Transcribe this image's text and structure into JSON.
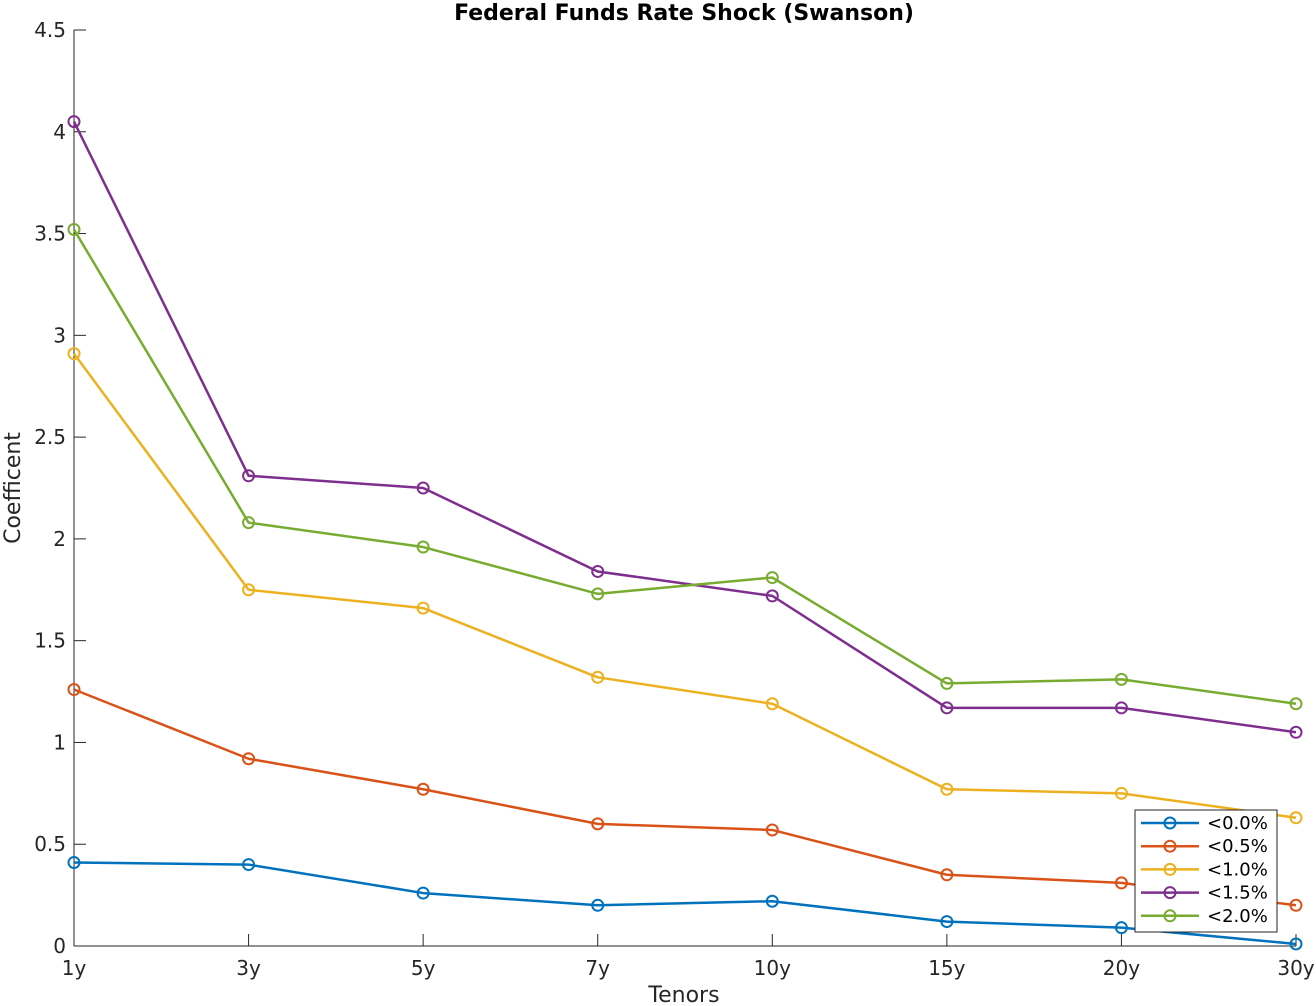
{
  "chart_data": {
    "type": "line",
    "title": "Federal Funds Rate Shock (Swanson)",
    "xlabel": "Tenors",
    "ylabel": "Coefficent",
    "categories": [
      "1y",
      "3y",
      "5y",
      "7y",
      "10y",
      "15y",
      "20y",
      "30y"
    ],
    "ylim": [
      0,
      4.5
    ],
    "yticks": [
      "0",
      "0.5",
      "1",
      "1.5",
      "2",
      "2.5",
      "3",
      "3.5",
      "4",
      "4.5"
    ],
    "grid": false,
    "legend_position": "bottom-right",
    "marker": "circle",
    "series": [
      {
        "name": "<0.0%",
        "color": "#0072BD",
        "values": [
          0.41,
          0.4,
          0.26,
          0.2,
          0.22,
          0.12,
          0.09,
          0.01
        ]
      },
      {
        "name": "<0.5%",
        "color": "#D95319",
        "values": [
          1.26,
          0.92,
          0.77,
          0.6,
          0.57,
          0.35,
          0.31,
          0.2
        ]
      },
      {
        "name": "<1.0%",
        "color": "#EDB120",
        "values": [
          2.91,
          1.75,
          1.66,
          1.32,
          1.19,
          0.77,
          0.75,
          0.63
        ]
      },
      {
        "name": "<1.5%",
        "color": "#7E2F8E",
        "values": [
          4.05,
          2.31,
          2.25,
          1.84,
          1.72,
          1.17,
          1.17,
          1.05
        ]
      },
      {
        "name": "<2.0%",
        "color": "#77AC30",
        "values": [
          3.52,
          2.08,
          1.96,
          1.73,
          1.81,
          1.29,
          1.31,
          1.19
        ]
      }
    ]
  }
}
